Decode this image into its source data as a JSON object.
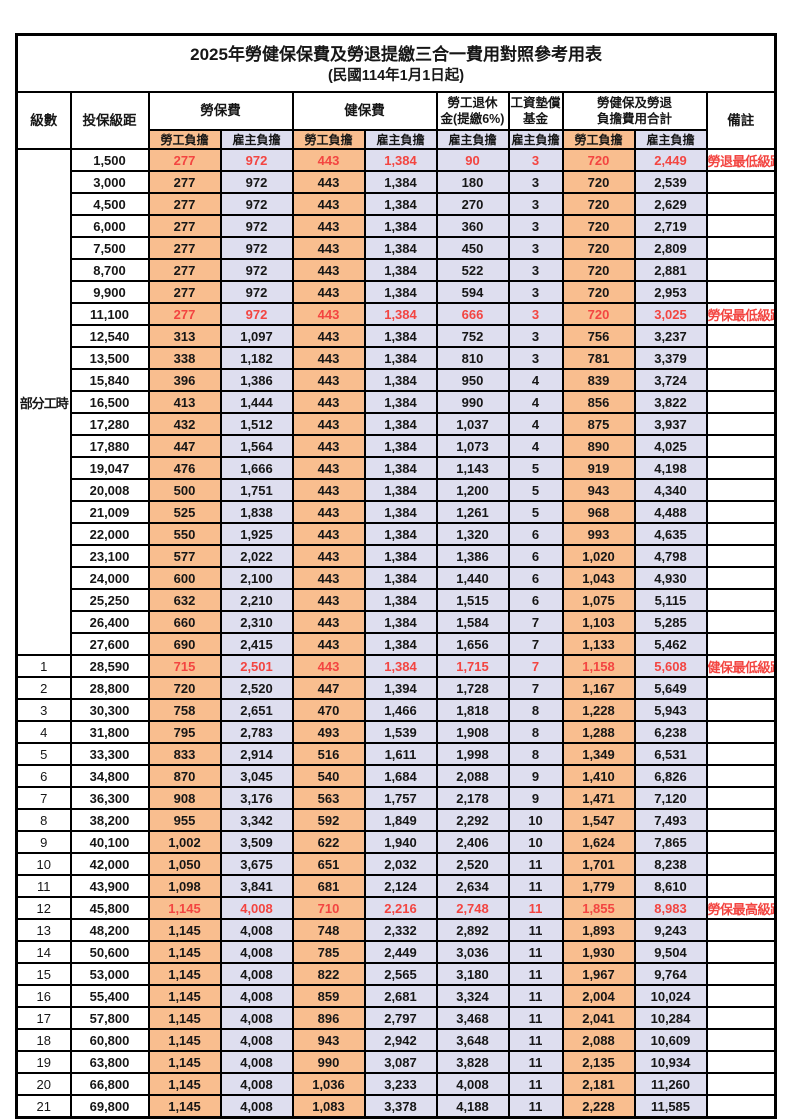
{
  "title": "2025年勞健保保費及勞退提繳三合一費用對照參考用表",
  "subtitle": "(民國114年1月1日起)",
  "header": {
    "level": "級數",
    "bracket": "投保級距",
    "labor_insurance": "勞保費",
    "health_insurance": "健保費",
    "pension_line1": "勞工退休",
    "pension_line2": "金(提繳6%)",
    "wage_fund_line1": "工資墊償",
    "wage_fund_line2": "基金",
    "total_line1": "勞健保及勞退",
    "total_line2": "負擔費用合計",
    "remark": "備註",
    "employee": "勞工負擔",
    "employer": "雇主負擔"
  },
  "part_time": {
    "label": "部分工時",
    "rowspan": 23
  },
  "colors": {
    "employee_fill": "#F9BE8F",
    "employer_fill": "#DEDEEF",
    "highlight_red": "#F34541",
    "grid": "#000000"
  },
  "value_names": [
    "labor-employee",
    "labor-employer",
    "health-employee",
    "health-employer",
    "pension-employer",
    "fund-employer",
    "total-employee",
    "total-employer"
  ],
  "rows": [
    {
      "level": "",
      "bracket": "1,500",
      "values": [
        "277",
        "972",
        "443",
        "1,384",
        "90",
        "3",
        "720",
        "2,449"
      ],
      "remark": "勞退最低級距",
      "red": true,
      "big": false
    },
    {
      "level": "",
      "bracket": "3,000",
      "values": [
        "277",
        "972",
        "443",
        "1,384",
        "180",
        "3",
        "720",
        "2,539"
      ],
      "remark": "",
      "red": false,
      "big": false
    },
    {
      "level": "",
      "bracket": "4,500",
      "values": [
        "277",
        "972",
        "443",
        "1,384",
        "270",
        "3",
        "720",
        "2,629"
      ],
      "remark": "",
      "red": false,
      "big": false
    },
    {
      "level": "",
      "bracket": "6,000",
      "values": [
        "277",
        "972",
        "443",
        "1,384",
        "360",
        "3",
        "720",
        "2,719"
      ],
      "remark": "",
      "red": false,
      "big": false
    },
    {
      "level": "",
      "bracket": "7,500",
      "values": [
        "277",
        "972",
        "443",
        "1,384",
        "450",
        "3",
        "720",
        "2,809"
      ],
      "remark": "",
      "red": false,
      "big": false
    },
    {
      "level": "",
      "bracket": "8,700",
      "values": [
        "277",
        "972",
        "443",
        "1,384",
        "522",
        "3",
        "720",
        "2,881"
      ],
      "remark": "",
      "red": false,
      "big": false
    },
    {
      "level": "",
      "bracket": "9,900",
      "values": [
        "277",
        "972",
        "443",
        "1,384",
        "594",
        "3",
        "720",
        "2,953"
      ],
      "remark": "",
      "red": false,
      "big": false
    },
    {
      "level": "",
      "bracket": "11,100",
      "values": [
        "277",
        "972",
        "443",
        "1,384",
        "666",
        "3",
        "720",
        "3,025"
      ],
      "remark": "勞保最低級距",
      "red": true,
      "big": false
    },
    {
      "level": "",
      "bracket": "12,540",
      "values": [
        "313",
        "1,097",
        "443",
        "1,384",
        "752",
        "3",
        "756",
        "3,237"
      ],
      "remark": "",
      "red": false,
      "big": false
    },
    {
      "level": "",
      "bracket": "13,500",
      "values": [
        "338",
        "1,182",
        "443",
        "1,384",
        "810",
        "3",
        "781",
        "3,379"
      ],
      "remark": "",
      "red": false,
      "big": false
    },
    {
      "level": "",
      "bracket": "15,840",
      "values": [
        "396",
        "1,386",
        "443",
        "1,384",
        "950",
        "4",
        "839",
        "3,724"
      ],
      "remark": "",
      "red": false,
      "big": false
    },
    {
      "level": "",
      "bracket": "16,500",
      "values": [
        "413",
        "1,444",
        "443",
        "1,384",
        "990",
        "4",
        "856",
        "3,822"
      ],
      "remark": "",
      "red": false,
      "big": false
    },
    {
      "level": "",
      "bracket": "17,280",
      "values": [
        "432",
        "1,512",
        "443",
        "1,384",
        "1,037",
        "4",
        "875",
        "3,937"
      ],
      "remark": "",
      "red": false,
      "big": false
    },
    {
      "level": "",
      "bracket": "17,880",
      "values": [
        "447",
        "1,564",
        "443",
        "1,384",
        "1,073",
        "4",
        "890",
        "4,025"
      ],
      "remark": "",
      "red": false,
      "big": false
    },
    {
      "level": "",
      "bracket": "19,047",
      "values": [
        "476",
        "1,666",
        "443",
        "1,384",
        "1,143",
        "5",
        "919",
        "4,198"
      ],
      "remark": "",
      "red": false,
      "big": false
    },
    {
      "level": "",
      "bracket": "20,008",
      "values": [
        "500",
        "1,751",
        "443",
        "1,384",
        "1,200",
        "5",
        "943",
        "4,340"
      ],
      "remark": "",
      "red": false,
      "big": false
    },
    {
      "level": "",
      "bracket": "21,009",
      "values": [
        "525",
        "1,838",
        "443",
        "1,384",
        "1,261",
        "5",
        "968",
        "4,488"
      ],
      "remark": "",
      "red": false,
      "big": false
    },
    {
      "level": "",
      "bracket": "22,000",
      "values": [
        "550",
        "1,925",
        "443",
        "1,384",
        "1,320",
        "6",
        "993",
        "4,635"
      ],
      "remark": "",
      "red": false,
      "big": false
    },
    {
      "level": "",
      "bracket": "23,100",
      "values": [
        "577",
        "2,022",
        "443",
        "1,384",
        "1,386",
        "6",
        "1,020",
        "4,798"
      ],
      "remark": "",
      "red": false,
      "big": false
    },
    {
      "level": "",
      "bracket": "24,000",
      "values": [
        "600",
        "2,100",
        "443",
        "1,384",
        "1,440",
        "6",
        "1,043",
        "4,930"
      ],
      "remark": "",
      "red": false,
      "big": false
    },
    {
      "level": "",
      "bracket": "25,250",
      "values": [
        "632",
        "2,210",
        "443",
        "1,384",
        "1,515",
        "6",
        "1,075",
        "5,115"
      ],
      "remark": "",
      "red": false,
      "big": false
    },
    {
      "level": "",
      "bracket": "26,400",
      "values": [
        "660",
        "2,310",
        "443",
        "1,384",
        "1,584",
        "7",
        "1,103",
        "5,285"
      ],
      "remark": "",
      "red": false,
      "big": false
    },
    {
      "level": "",
      "bracket": "27,600",
      "values": [
        "690",
        "2,415",
        "443",
        "1,384",
        "1,656",
        "7",
        "1,133",
        "5,462"
      ],
      "remark": "",
      "red": false,
      "big": false
    },
    {
      "level": "1",
      "bracket": "28,590",
      "values": [
        "715",
        "2,501",
        "443",
        "1,384",
        "1,715",
        "7",
        "1,158",
        "5,608"
      ],
      "remark": "健保最低級距",
      "red": true,
      "big": true
    },
    {
      "level": "2",
      "bracket": "28,800",
      "values": [
        "720",
        "2,520",
        "447",
        "1,394",
        "1,728",
        "7",
        "1,167",
        "5,649"
      ],
      "remark": "",
      "red": false,
      "big": false
    },
    {
      "level": "3",
      "bracket": "30,300",
      "values": [
        "758",
        "2,651",
        "470",
        "1,466",
        "1,818",
        "8",
        "1,228",
        "5,943"
      ],
      "remark": "",
      "red": false,
      "big": false
    },
    {
      "level": "4",
      "bracket": "31,800",
      "values": [
        "795",
        "2,783",
        "493",
        "1,539",
        "1,908",
        "8",
        "1,288",
        "6,238"
      ],
      "remark": "",
      "red": false,
      "big": false
    },
    {
      "level": "5",
      "bracket": "33,300",
      "values": [
        "833",
        "2,914",
        "516",
        "1,611",
        "1,998",
        "8",
        "1,349",
        "6,531"
      ],
      "remark": "",
      "red": false,
      "big": false
    },
    {
      "level": "6",
      "bracket": "34,800",
      "values": [
        "870",
        "3,045",
        "540",
        "1,684",
        "2,088",
        "9",
        "1,410",
        "6,826"
      ],
      "remark": "",
      "red": false,
      "big": false
    },
    {
      "level": "7",
      "bracket": "36,300",
      "values": [
        "908",
        "3,176",
        "563",
        "1,757",
        "2,178",
        "9",
        "1,471",
        "7,120"
      ],
      "remark": "",
      "red": false,
      "big": false
    },
    {
      "level": "8",
      "bracket": "38,200",
      "values": [
        "955",
        "3,342",
        "592",
        "1,849",
        "2,292",
        "10",
        "1,547",
        "7,493"
      ],
      "remark": "",
      "red": false,
      "big": false
    },
    {
      "level": "9",
      "bracket": "40,100",
      "values": [
        "1,002",
        "3,509",
        "622",
        "1,940",
        "2,406",
        "10",
        "1,624",
        "7,865"
      ],
      "remark": "",
      "red": false,
      "big": false
    },
    {
      "level": "10",
      "bracket": "42,000",
      "values": [
        "1,050",
        "3,675",
        "651",
        "2,032",
        "2,520",
        "11",
        "1,701",
        "8,238"
      ],
      "remark": "",
      "red": false,
      "big": false
    },
    {
      "level": "11",
      "bracket": "43,900",
      "values": [
        "1,098",
        "3,841",
        "681",
        "2,124",
        "2,634",
        "11",
        "1,779",
        "8,610"
      ],
      "remark": "",
      "red": false,
      "big": false
    },
    {
      "level": "12",
      "bracket": "45,800",
      "values": [
        "1,145",
        "4,008",
        "710",
        "2,216",
        "2,748",
        "11",
        "1,855",
        "8,983"
      ],
      "remark": "勞保最高級距",
      "red": true,
      "big": true
    },
    {
      "level": "13",
      "bracket": "48,200",
      "values": [
        "1,145",
        "4,008",
        "748",
        "2,332",
        "2,892",
        "11",
        "1,893",
        "9,243"
      ],
      "remark": "",
      "red": false,
      "big": false
    },
    {
      "level": "14",
      "bracket": "50,600",
      "values": [
        "1,145",
        "4,008",
        "785",
        "2,449",
        "3,036",
        "11",
        "1,930",
        "9,504"
      ],
      "remark": "",
      "red": false,
      "big": false
    },
    {
      "level": "15",
      "bracket": "53,000",
      "values": [
        "1,145",
        "4,008",
        "822",
        "2,565",
        "3,180",
        "11",
        "1,967",
        "9,764"
      ],
      "remark": "",
      "red": false,
      "big": false
    },
    {
      "level": "16",
      "bracket": "55,400",
      "values": [
        "1,145",
        "4,008",
        "859",
        "2,681",
        "3,324",
        "11",
        "2,004",
        "10,024"
      ],
      "remark": "",
      "red": false,
      "big": false
    },
    {
      "level": "17",
      "bracket": "57,800",
      "values": [
        "1,145",
        "4,008",
        "896",
        "2,797",
        "3,468",
        "11",
        "2,041",
        "10,284"
      ],
      "remark": "",
      "red": false,
      "big": false
    },
    {
      "level": "18",
      "bracket": "60,800",
      "values": [
        "1,145",
        "4,008",
        "943",
        "2,942",
        "3,648",
        "11",
        "2,088",
        "10,609"
      ],
      "remark": "",
      "red": false,
      "big": false
    },
    {
      "level": "19",
      "bracket": "63,800",
      "values": [
        "1,145",
        "4,008",
        "990",
        "3,087",
        "3,828",
        "11",
        "2,135",
        "10,934"
      ],
      "remark": "",
      "red": false,
      "big": false
    },
    {
      "level": "20",
      "bracket": "66,800",
      "values": [
        "1,145",
        "4,008",
        "1,036",
        "3,233",
        "4,008",
        "11",
        "2,181",
        "11,260"
      ],
      "remark": "",
      "red": false,
      "big": false
    },
    {
      "level": "21",
      "bracket": "69,800",
      "values": [
        "1,145",
        "4,008",
        "1,083",
        "3,378",
        "4,188",
        "11",
        "2,228",
        "11,585"
      ],
      "remark": "",
      "red": false,
      "big": false
    }
  ]
}
